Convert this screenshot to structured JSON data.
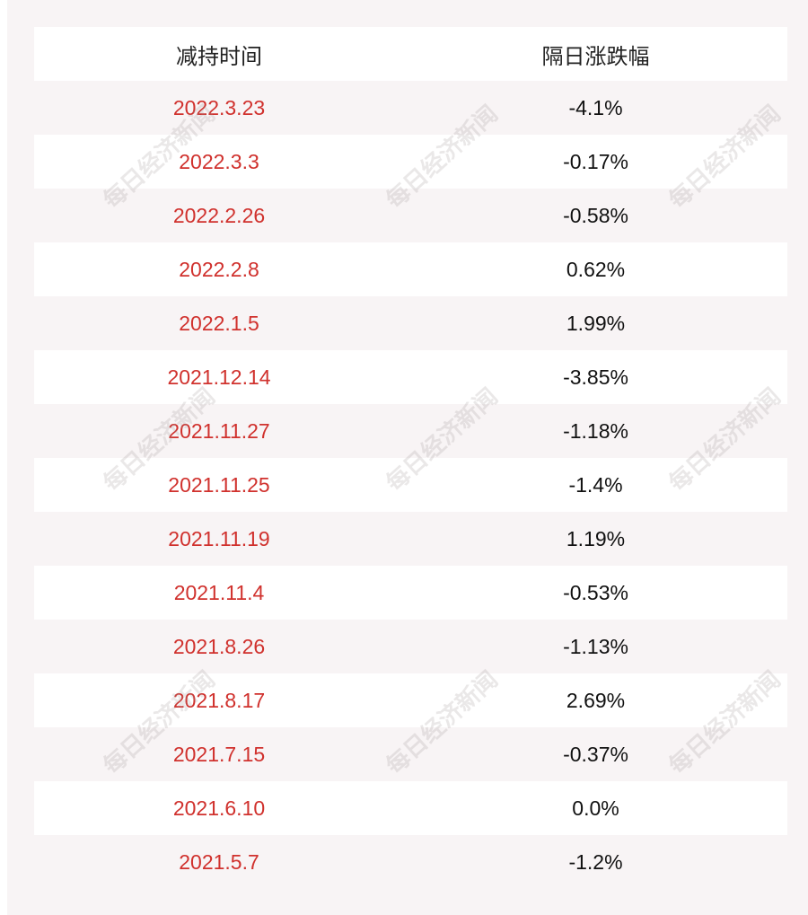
{
  "table": {
    "header": [
      "减持时间",
      "隔日涨跌幅"
    ],
    "rows": [
      [
        "2022.3.23",
        "-4.1%"
      ],
      [
        "2022.3.3",
        "-0.17%"
      ],
      [
        "2022.2.26",
        "-0.58%"
      ],
      [
        "2022.2.8",
        "0.62%"
      ],
      [
        "2022.1.5",
        "1.99%"
      ],
      [
        "2021.12.14",
        "-3.85%"
      ],
      [
        "2021.11.27",
        "-1.18%"
      ],
      [
        "2021.11.25",
        "-1.4%"
      ],
      [
        "2021.11.19",
        "1.19%"
      ],
      [
        "2021.11.4",
        "-0.53%"
      ],
      [
        "2021.8.26",
        "-1.13%"
      ],
      [
        "2021.8.17",
        "2.69%"
      ],
      [
        "2021.7.15",
        "-0.37%"
      ],
      [
        "2021.6.10",
        "0.0%"
      ],
      [
        "2021.5.7",
        "-1.2%"
      ]
    ]
  },
  "watermark": "每日经济新闻"
}
